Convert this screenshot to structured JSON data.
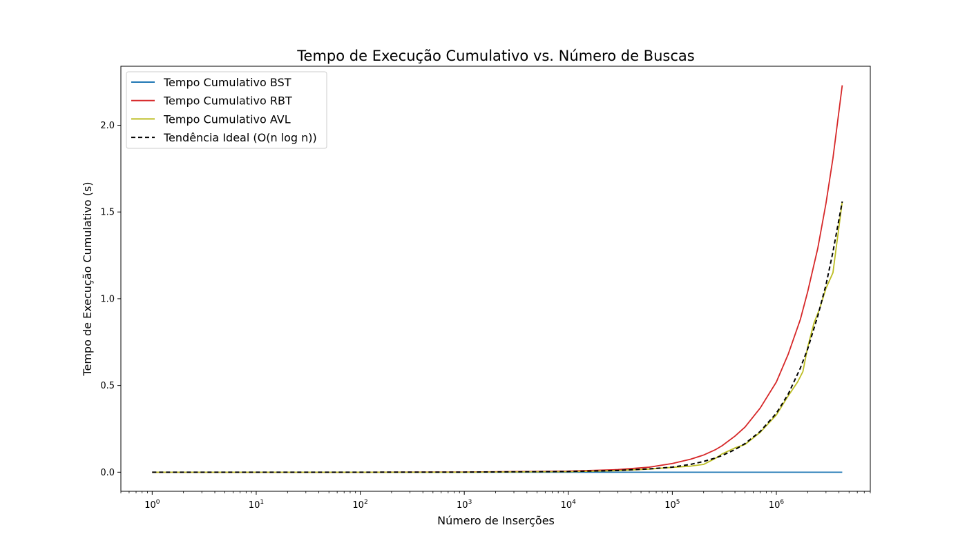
{
  "chart_data": {
    "type": "line",
    "title": "Tempo de Execução Cumulativo vs. Número de Buscas",
    "xlabel": "Número de Inserções",
    "ylabel": "Tempo de Execução Cumulativo (s)",
    "x_scale": "log",
    "xlim": [
      0.5,
      8000000
    ],
    "ylim": [
      -0.11,
      2.34
    ],
    "x_ticks": [
      {
        "value": 1,
        "base": "10",
        "exp": "0"
      },
      {
        "value": 10,
        "base": "10",
        "exp": "1"
      },
      {
        "value": 100,
        "base": "10",
        "exp": "2"
      },
      {
        "value": 1000,
        "base": "10",
        "exp": "3"
      },
      {
        "value": 10000,
        "base": "10",
        "exp": "4"
      },
      {
        "value": 100000,
        "base": "10",
        "exp": "5"
      },
      {
        "value": 1000000,
        "base": "10",
        "exp": "6"
      }
    ],
    "y_ticks": [
      {
        "value": 0.0,
        "label": "0.0"
      },
      {
        "value": 0.5,
        "label": "0.5"
      },
      {
        "value": 1.0,
        "label": "1.0"
      },
      {
        "value": 1.5,
        "label": "1.5"
      },
      {
        "value": 2.0,
        "label": "2.0"
      }
    ],
    "grid": false,
    "legend_position": "upper-left",
    "series": [
      {
        "name": "Tempo Cumulativo BST",
        "color": "#1f77b4",
        "dash": "solid",
        "x": [
          1,
          10,
          100,
          1000,
          10000,
          100000,
          1000000,
          4300000
        ],
        "y": [
          0,
          0,
          0,
          0,
          0,
          0,
          0,
          0
        ]
      },
      {
        "name": "Tempo Cumulativo RBT",
        "color": "#d62728",
        "dash": "solid",
        "x": [
          1,
          10,
          100,
          1000,
          10000,
          30000,
          60000,
          100000,
          150000,
          200000,
          260000,
          300000,
          400000,
          500000,
          700000,
          1000000,
          1300000,
          1700000,
          2000000,
          2500000,
          3000000,
          3500000,
          4300000
        ],
        "y": [
          0,
          0,
          0,
          0.001,
          0.006,
          0.015,
          0.029,
          0.05,
          0.075,
          0.099,
          0.13,
          0.152,
          0.208,
          0.26,
          0.37,
          0.52,
          0.68,
          0.88,
          1.04,
          1.29,
          1.55,
          1.81,
          2.23
        ]
      },
      {
        "name": "Tempo Cumulativo AVL",
        "color": "#bcbd22",
        "dash": "solid",
        "x": [
          1,
          10,
          100,
          1000,
          10000,
          30000,
          60000,
          100000,
          150000,
          200000,
          260000,
          300000,
          400000,
          500000,
          700000,
          1000000,
          1300000,
          1600000,
          1800000,
          2000000,
          2300000,
          2600000,
          3000000,
          3500000,
          4300000
        ],
        "y": [
          0,
          0,
          0,
          0,
          0.003,
          0.009,
          0.018,
          0.028,
          0.035,
          0.045,
          0.08,
          0.105,
          0.14,
          0.16,
          0.23,
          0.33,
          0.44,
          0.52,
          0.58,
          0.72,
          0.86,
          0.94,
          1.06,
          1.15,
          1.56
        ]
      },
      {
        "name": "Tendência Ideal (O(n log n))",
        "color": "#000000",
        "dash": "dashed",
        "x": [
          1,
          10,
          100,
          1000,
          10000,
          30000,
          60000,
          100000,
          150000,
          200000,
          260000,
          300000,
          400000,
          500000,
          700000,
          1000000,
          1300000,
          1700000,
          2000000,
          2500000,
          3000000,
          3500000,
          4300000
        ],
        "y": [
          0,
          0,
          0,
          0.0006,
          0.004,
          0.01,
          0.019,
          0.029,
          0.045,
          0.062,
          0.082,
          0.096,
          0.13,
          0.165,
          0.235,
          0.34,
          0.45,
          0.6,
          0.71,
          0.9,
          1.08,
          1.27,
          1.56
        ]
      }
    ]
  }
}
